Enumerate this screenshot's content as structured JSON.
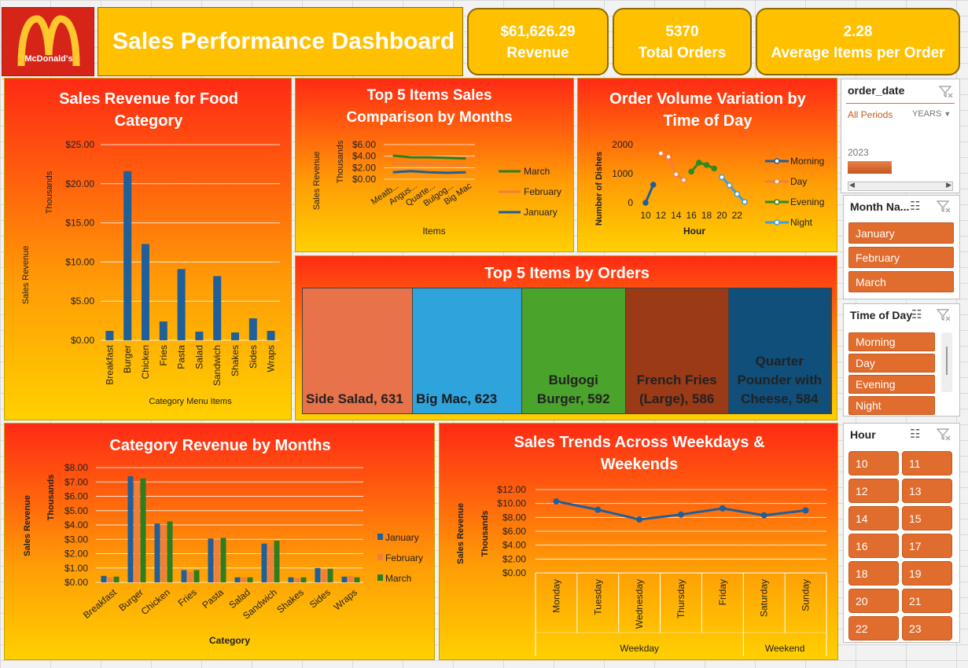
{
  "header": {
    "logo_text": "McDonald's",
    "title": "Sales Performance Dashboard"
  },
  "kpis": [
    {
      "value": "$61,626.29",
      "label": "Revenue"
    },
    {
      "value": "5370",
      "label": "Total Orders"
    },
    {
      "value": "2.28",
      "label": "Average Items per Order"
    }
  ],
  "colors": {
    "bar_blue": "#1f5f9a",
    "series_march": "#2e7d1f",
    "series_february": "#f07f3c",
    "series_january": "#1f5f9a",
    "morning": "#1f5f9a",
    "day": "#f07f3c",
    "evening": "#2e8b1f",
    "night": "#3aa0e0",
    "slicer_button": "#e06c2e"
  },
  "food_category": {
    "title": "Sales Revenue for Food Category",
    "ylabel": "Sales Revenue",
    "unit_label": "Thousands",
    "xlabel": "Category Menu Items",
    "ticks": [
      "$25.00",
      "$20.00",
      "$15.00",
      "$10.00",
      "$5.00",
      "$0.00"
    ]
  },
  "top5_months": {
    "title": "Top 5 Items Sales Comparison by Months",
    "ylabel": "Sales Revenue",
    "unit_label": "Thousands",
    "xlabel": "Items",
    "ticks": [
      "$6.00",
      "$4.00",
      "$2.00",
      "$0.00"
    ]
  },
  "order_volume": {
    "title": "Order Volume Variation by Time of Day",
    "ylabel": "Number of Dishes",
    "xlabel": "Hour",
    "ticks": [
      "2000",
      "1000",
      "0"
    ]
  },
  "top5_orders": {
    "title": "Top 5 Items by Orders",
    "tiles": [
      {
        "label": "Side Salad, 631",
        "color": "#e8734a"
      },
      {
        "label": "Big Mac, 623",
        "color": "#2ea3dc"
      },
      {
        "label": "Bulgogi Burger, 592",
        "color": "#4aa32a"
      },
      {
        "label": "French Fries (Large), 586",
        "color": "#9a3a16"
      },
      {
        "label": "Quarter Pounder with Cheese, 584",
        "color": "#0f4f7a"
      }
    ]
  },
  "category_months": {
    "title": "Category Revenue by Months",
    "ylabel": "Sales Revenue",
    "unit_label": "Thousands",
    "xlabel": "Category",
    "ticks": [
      "$8.00",
      "$7.00",
      "$6.00",
      "$5.00",
      "$4.00",
      "$3.00",
      "$2.00",
      "$1.00",
      "$0.00"
    ]
  },
  "weekday_trend": {
    "title": "Sales Trends Across Weekdays & Weekends",
    "ylabel": "Sales Revenue",
    "unit_label": "Thousands",
    "group_labels": [
      "Weekday",
      "Weekend"
    ],
    "ticks": [
      "$12.00",
      "$10.00",
      "$8.00",
      "$6.00",
      "$4.00",
      "$2.00",
      "$0.00"
    ]
  },
  "slicers": {
    "order_date": {
      "title": "order_date",
      "period": "All Periods",
      "level": "YEARS",
      "year": "2023"
    },
    "month": {
      "title": "Month Na...",
      "items": [
        "January",
        "February",
        "March"
      ]
    },
    "time_of_day": {
      "title": "Time of Day",
      "items": [
        "Morning",
        "Day",
        "Evening",
        "Night"
      ]
    },
    "hour": {
      "title": "Hour",
      "items": [
        "10",
        "11",
        "12",
        "13",
        "14",
        "15",
        "16",
        "17",
        "18",
        "19",
        "20",
        "21",
        "22",
        "23"
      ]
    }
  },
  "chart_data": [
    {
      "type": "bar",
      "title": "Sales Revenue for Food Category",
      "ylabel": "Sales Revenue",
      "xlabel": "Category Menu Items",
      "categories": [
        "Breakfast",
        "Burger",
        "Chicken",
        "Fries",
        "Pasta",
        "Salad",
        "Sandwich",
        "Shakes",
        "Sides",
        "Wraps"
      ],
      "values": [
        1.2,
        21.6,
        12.3,
        2.4,
        9.1,
        1.1,
        8.2,
        1.0,
        2.8,
        1.2
      ],
      "ylim": [
        0,
        25
      ]
    },
    {
      "type": "line",
      "title": "Top 5 Items Sales Comparison by Months",
      "ylabel": "Sales Revenue",
      "xlabel": "Items",
      "categories": [
        "Meatb...",
        "Angus...",
        "Quarte...",
        "Bulgog...",
        "Big Mac"
      ],
      "series": [
        {
          "name": "March",
          "values": [
            4.1,
            3.8,
            3.8,
            3.7,
            3.6
          ]
        },
        {
          "name": "February",
          "values": [
            2.7,
            2.7,
            2.6,
            2.4,
            2.4
          ]
        },
        {
          "name": "January",
          "values": [
            1.2,
            1.4,
            1.2,
            1.1,
            1.2
          ]
        }
      ],
      "ylim": [
        0,
        6
      ]
    },
    {
      "type": "line",
      "title": "Order Volume Variation by Time of Day",
      "ylabel": "Number of Dishes",
      "xlabel": "Hour",
      "x_ticks": [
        "10",
        "12",
        "14",
        "16",
        "18",
        "20",
        "22"
      ],
      "series": [
        {
          "name": "Morning",
          "x": [
            10,
            11
          ],
          "values": [
            0,
            620
          ]
        },
        {
          "name": "Day",
          "x": [
            12,
            13,
            14,
            15
          ],
          "values": [
            1700,
            1580,
            980,
            780
          ]
        },
        {
          "name": "Evening",
          "x": [
            16,
            17,
            18,
            19
          ],
          "values": [
            1070,
            1380,
            1300,
            1180
          ]
        },
        {
          "name": "Night",
          "x": [
            20,
            21,
            22,
            23
          ],
          "values": [
            880,
            600,
            300,
            30
          ]
        }
      ],
      "ylim": [
        0,
        2000
      ]
    },
    {
      "type": "bar",
      "title": "Top 5 Items by Orders",
      "categories": [
        "Side Salad",
        "Big Mac",
        "Bulgogi Burger",
        "French Fries (Large)",
        "Quarter Pounder with Cheese"
      ],
      "values": [
        631,
        623,
        592,
        586,
        584
      ]
    },
    {
      "type": "bar",
      "title": "Category Revenue by Months",
      "ylabel": "Sales Revenue",
      "xlabel": "Category",
      "categories": [
        "Breakfast",
        "Burger",
        "Chicken",
        "Fries",
        "Pasta",
        "Salad",
        "Sandwich",
        "Shakes",
        "Sides",
        "Wraps"
      ],
      "series": [
        {
          "name": "January",
          "values": [
            0.45,
            7.4,
            4.1,
            0.85,
            3.05,
            0.35,
            2.7,
            0.35,
            1.0,
            0.4
          ]
        },
        {
          "name": "February",
          "values": [
            0.35,
            7.0,
            4.0,
            0.75,
            3.0,
            0.35,
            2.6,
            0.3,
            0.9,
            0.45
          ]
        },
        {
          "name": "March",
          "values": [
            0.4,
            7.25,
            4.25,
            0.85,
            3.1,
            0.35,
            2.9,
            0.35,
            0.95,
            0.35
          ]
        }
      ],
      "ylim": [
        0,
        8
      ]
    },
    {
      "type": "line",
      "title": "Sales Trends Across Weekdays & Weekends",
      "ylabel": "Sales Revenue",
      "categories": [
        "Monday",
        "Tuesday",
        "Wednesday",
        "Thursday",
        "Friday",
        "Saturday",
        "Sunday"
      ],
      "groups": [
        {
          "name": "Weekday",
          "members": [
            "Monday",
            "Tuesday",
            "Wednesday",
            "Thursday",
            "Friday"
          ]
        },
        {
          "name": "Weekend",
          "members": [
            "Saturday",
            "Sunday"
          ]
        }
      ],
      "values": [
        10.3,
        9.1,
        7.7,
        8.4,
        9.3,
        8.3,
        9.0
      ],
      "ylim": [
        0,
        12
      ]
    }
  ]
}
